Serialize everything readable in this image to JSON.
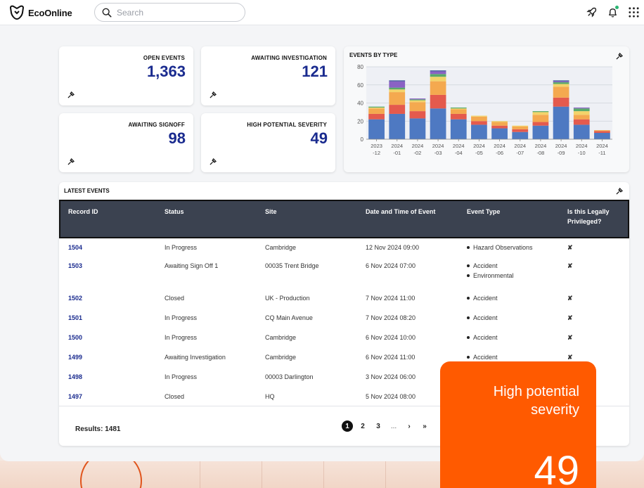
{
  "app": {
    "brand": "EcoOnline"
  },
  "search": {
    "placeholder": "Search"
  },
  "kpis": [
    {
      "label": "OPEN EVENTS",
      "value": "1,363"
    },
    {
      "label": "AWAITING INVESTIGATION",
      "value": "121"
    },
    {
      "label": "AWAITING SIGNOFF",
      "value": "98"
    },
    {
      "label": "HIGH POTENTIAL SEVERITY",
      "value": "49"
    }
  ],
  "chart": {
    "title": "EVENTS BY TYPE",
    "colors": [
      "#4e79c2",
      "#e45a4d",
      "#f4a94f",
      "#f3d36a",
      "#5aaa6a",
      "#8a62c4",
      "#3e5a9a"
    ]
  },
  "chart_data": {
    "type": "bar",
    "stacked": true,
    "title": "EVENTS BY TYPE",
    "categories": [
      "2023-12",
      "2024-01",
      "2024-02",
      "2024-03",
      "2024-04",
      "2024-05",
      "2024-06",
      "2024-07",
      "2024-08",
      "2024-09",
      "2024-10",
      "2024-11"
    ],
    "category_labels": [
      [
        "2023",
        "-12"
      ],
      [
        "2024",
        "-01"
      ],
      [
        "2024",
        "-02"
      ],
      [
        "2024",
        "-03"
      ],
      [
        "2024",
        "-04"
      ],
      [
        "2024",
        "-05"
      ],
      [
        "2024",
        "-06"
      ],
      [
        "2024",
        "-07"
      ],
      [
        "2024",
        "-08"
      ],
      [
        "2024",
        "-09"
      ],
      [
        "2024",
        "-10"
      ],
      [
        "2024",
        "-11"
      ]
    ],
    "ylim": [
      0,
      80
    ],
    "yticks": [
      0,
      20,
      40,
      60,
      80
    ],
    "grid": true,
    "series": [
      {
        "values": [
          22,
          28,
          23,
          34,
          22,
          16,
          12,
          8,
          15,
          36,
          16,
          7
        ]
      },
      {
        "values": [
          6,
          10,
          8,
          15,
          6,
          4,
          3,
          3,
          4,
          10,
          6,
          2
        ]
      },
      {
        "values": [
          6,
          14,
          10,
          15,
          5,
          5,
          4,
          3,
          8,
          12,
          5,
          1
        ]
      },
      {
        "values": [
          1,
          3,
          2,
          5,
          1,
          1,
          1,
          1,
          3,
          3,
          4,
          0
        ]
      },
      {
        "values": [
          1,
          2,
          1,
          3,
          1,
          0,
          0,
          0,
          1,
          2,
          3,
          0
        ]
      },
      {
        "values": [
          0,
          7,
          1,
          3,
          0,
          0,
          0,
          0,
          0,
          1,
          1,
          0
        ]
      },
      {
        "values": [
          0,
          1,
          0,
          1,
          0,
          0,
          0,
          0,
          0,
          1,
          0,
          0
        ]
      }
    ]
  },
  "events": {
    "title": "LATEST EVENTS",
    "columns": [
      "Record ID",
      "Status",
      "Site",
      "Date and Time of Event",
      "Event Type",
      "Is this Legally Privileged?"
    ],
    "rows": [
      {
        "id": "1504",
        "status": "In Progress",
        "site": "Cambridge",
        "date": "12 Nov 2024 09:00",
        "types": [
          "Hazard Observations"
        ],
        "privileged": "✘"
      },
      {
        "id": "1503",
        "status": "Awaiting Sign Off 1",
        "site": "00035 Trent Bridge",
        "date": "6 Nov 2024 07:00",
        "types": [
          "Accident",
          "Environmental"
        ],
        "privileged": "✘"
      },
      {
        "id": "1502",
        "status": "Closed",
        "site": "UK - Production",
        "date": "7 Nov 2024 11:00",
        "types": [
          "Accident"
        ],
        "privileged": "✘"
      },
      {
        "id": "1501",
        "status": "In Progress",
        "site": "CQ Main Avenue",
        "date": "7 Nov 2024 08:20",
        "types": [
          "Accident"
        ],
        "privileged": "✘"
      },
      {
        "id": "1500",
        "status": "In Progress",
        "site": "Cambridge",
        "date": "6 Nov 2024 10:00",
        "types": [
          "Accident"
        ],
        "privileged": "✘"
      },
      {
        "id": "1499",
        "status": "Awaiting Investigation",
        "site": "Cambridge",
        "date": "6 Nov 2024 11:00",
        "types": [
          "Accident"
        ],
        "privileged": "✘"
      },
      {
        "id": "1498",
        "status": "In Progress",
        "site": "00003 Darlington",
        "date": "3 Nov 2024 06:00",
        "types": [],
        "privileged": ""
      },
      {
        "id": "1497",
        "status": "Closed",
        "site": "HQ",
        "date": "5 Nov 2024 08:00",
        "types": [],
        "privileged": ""
      }
    ],
    "results": "Results: 1481",
    "pagination": {
      "pages": [
        "1",
        "2",
        "3"
      ],
      "current": "1",
      "ellipsis": "...",
      "next": "›",
      "last": "»"
    }
  },
  "overlay": {
    "label": "High potential severity",
    "value": "49"
  }
}
